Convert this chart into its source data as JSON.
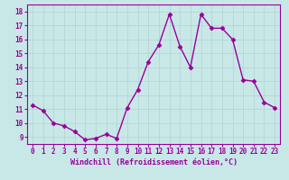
{
  "x": [
    0,
    1,
    2,
    3,
    4,
    5,
    6,
    7,
    8,
    9,
    10,
    11,
    12,
    13,
    14,
    15,
    16,
    17,
    18,
    19,
    20,
    21,
    22,
    23
  ],
  "y": [
    11.3,
    10.9,
    10.0,
    9.8,
    9.4,
    8.8,
    8.9,
    9.2,
    8.9,
    11.1,
    12.4,
    14.4,
    15.6,
    17.8,
    15.5,
    14.0,
    17.8,
    16.8,
    16.8,
    16.0,
    13.1,
    13.0,
    11.5,
    11.1
  ],
  "line_color": "#990099",
  "marker": "D",
  "marker_size": 2.5,
  "bg_color": "#c8e8e8",
  "grid_color": "#aaaacc",
  "xlabel": "Windchill (Refroidissement éolien,°C)",
  "xlabel_color": "#990099",
  "tick_color": "#990099",
  "ylim": [
    8.5,
    18.5
  ],
  "xlim": [
    -0.5,
    23.5
  ],
  "yticks": [
    9,
    10,
    11,
    12,
    13,
    14,
    15,
    16,
    17,
    18
  ],
  "xticks": [
    0,
    1,
    2,
    3,
    4,
    5,
    6,
    7,
    8,
    9,
    10,
    11,
    12,
    13,
    14,
    15,
    16,
    17,
    18,
    19,
    20,
    21,
    22,
    23
  ]
}
